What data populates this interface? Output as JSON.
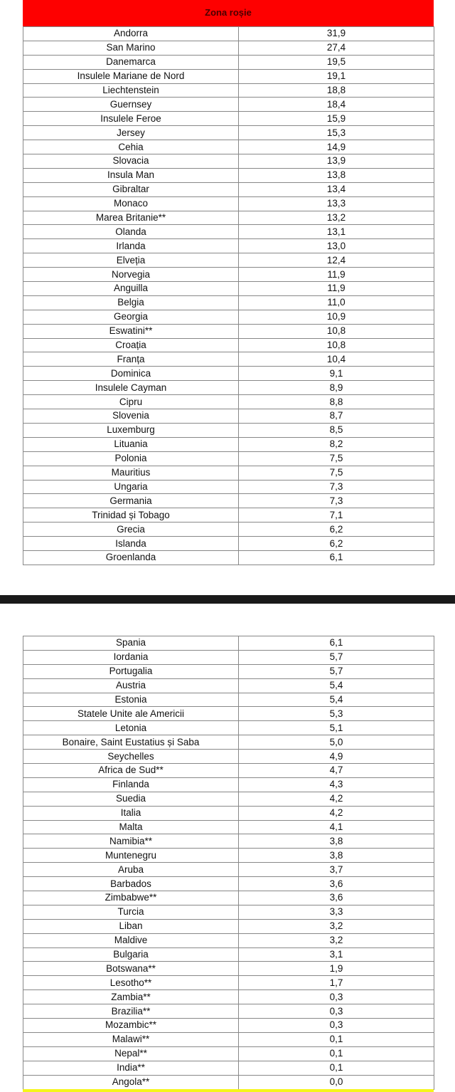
{
  "header": {
    "title": "Zona roșie"
  },
  "colors": {
    "header_red": "#fe0000",
    "footer_yellow": "#f5f51a",
    "divider": "#1a1a1a"
  },
  "table1": [
    [
      "Andorra",
      "31,9"
    ],
    [
      "San Marino",
      "27,4"
    ],
    [
      "Danemarca",
      "19,5"
    ],
    [
      "Insulele Mariane de Nord",
      "19,1"
    ],
    [
      "Liechtenstein",
      "18,8"
    ],
    [
      "Guernsey",
      "18,4"
    ],
    [
      "Insulele Feroe",
      "15,9"
    ],
    [
      "Jersey",
      "15,3"
    ],
    [
      "Cehia",
      "14,9"
    ],
    [
      "Slovacia",
      "13,9"
    ],
    [
      "Insula Man",
      "13,8"
    ],
    [
      "Gibraltar",
      "13,4"
    ],
    [
      "Monaco",
      "13,3"
    ],
    [
      "Marea Britanie**",
      "13,2"
    ],
    [
      "Olanda",
      "13,1"
    ],
    [
      "Irlanda",
      "13,0"
    ],
    [
      "Elveția",
      "12,4"
    ],
    [
      "Norvegia",
      "11,9"
    ],
    [
      "Anguilla",
      "11,9"
    ],
    [
      "Belgia",
      "11,0"
    ],
    [
      "Georgia",
      "10,9"
    ],
    [
      "Eswatini**",
      "10,8"
    ],
    [
      "Croația",
      "10,8"
    ],
    [
      "Franța",
      "10,4"
    ],
    [
      "Dominica",
      "9,1"
    ],
    [
      "Insulele Cayman",
      "8,9"
    ],
    [
      "Cipru",
      "8,8"
    ],
    [
      "Slovenia",
      "8,7"
    ],
    [
      "Luxemburg",
      "8,5"
    ],
    [
      "Lituania",
      "8,2"
    ],
    [
      "Polonia",
      "7,5"
    ],
    [
      "Mauritius",
      "7,5"
    ],
    [
      "Ungaria",
      "7,3"
    ],
    [
      "Germania",
      "7,3"
    ],
    [
      "Trinidad și Tobago",
      "7,1"
    ],
    [
      "Grecia",
      "6,2"
    ],
    [
      "Islanda",
      "6,2"
    ],
    [
      "Groenlanda",
      "6,1"
    ]
  ],
  "table2": [
    [
      "Spania",
      "6,1"
    ],
    [
      "Iordania",
      "5,7"
    ],
    [
      "Portugalia",
      "5,7"
    ],
    [
      "Austria",
      "5,4"
    ],
    [
      "Estonia",
      "5,4"
    ],
    [
      "Statele Unite ale Americii",
      "5,3"
    ],
    [
      "Letonia",
      "5,1"
    ],
    [
      "Bonaire, Saint Eustatius și Saba",
      "5,0"
    ],
    [
      "Seychelles",
      "4,9"
    ],
    [
      "Africa de Sud**",
      "4,7"
    ],
    [
      "Finlanda",
      "4,3"
    ],
    [
      "Suedia",
      "4,2"
    ],
    [
      "Italia",
      "4,2"
    ],
    [
      "Malta",
      "4,1"
    ],
    [
      "Namibia**",
      "3,8"
    ],
    [
      "Muntenegru",
      "3,8"
    ],
    [
      "Aruba",
      "3,7"
    ],
    [
      "Barbados",
      "3,6"
    ],
    [
      "Zimbabwe**",
      "3,6"
    ],
    [
      "Turcia",
      "3,3"
    ],
    [
      "Liban",
      "3,2"
    ],
    [
      "Maldive",
      "3,2"
    ],
    [
      "Bulgaria",
      "3,1"
    ],
    [
      "Botswana**",
      "1,9"
    ],
    [
      "Lesotho**",
      "1,7"
    ],
    [
      "Zambia**",
      "0,3"
    ],
    [
      "Brazilia**",
      "0,3"
    ],
    [
      "Mozambic**",
      "0,3"
    ],
    [
      "Malawi**",
      "0,1"
    ],
    [
      "Nepal**",
      "0,1"
    ],
    [
      "India**",
      "0,1"
    ],
    [
      "Angola**",
      "0,0"
    ]
  ]
}
